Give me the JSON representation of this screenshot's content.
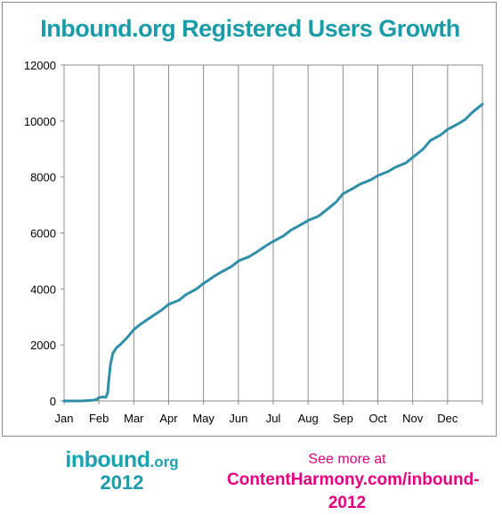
{
  "chart_data": {
    "type": "line",
    "title": "Inbound.org Registered Users Growth",
    "xlabel": "",
    "ylabel": "",
    "ylim": [
      0,
      12000
    ],
    "y_ticks": [
      "0",
      "2000",
      "4000",
      "6000",
      "8000",
      "10000",
      "12000"
    ],
    "x_tick_labels": [
      "Jan",
      "Feb",
      "Mar",
      "Apr",
      "May",
      "Jun",
      "Jul",
      "Aug",
      "Sep",
      "Oct",
      "Nov",
      "Dec"
    ],
    "xlim_months": [
      0,
      12
    ],
    "grid": "vertical",
    "legend": "none",
    "series": [
      {
        "color": "#2f8fa8",
        "x_months": [
          0,
          0.5,
          0.85,
          0.95,
          1.0,
          1.1,
          1.2,
          1.25,
          1.28,
          1.33,
          1.4,
          1.5,
          1.6,
          1.8,
          2.0,
          2.2,
          2.5,
          2.8,
          3.0,
          3.3,
          3.5,
          3.8,
          4.0,
          4.3,
          4.5,
          4.8,
          5.0,
          5.3,
          5.5,
          5.8,
          6.0,
          6.3,
          6.5,
          6.8,
          7.0,
          7.3,
          7.5,
          7.8,
          8.0,
          8.3,
          8.5,
          8.8,
          9.0,
          9.3,
          9.5,
          9.8,
          10.0,
          10.3,
          10.5,
          10.8,
          11.0,
          11.3,
          11.5,
          11.7,
          11.9,
          12.0
        ],
        "y_values": [
          0,
          0,
          30,
          60,
          120,
          140,
          130,
          300,
          700,
          1300,
          1700,
          1900,
          2000,
          2250,
          2550,
          2750,
          3000,
          3250,
          3450,
          3600,
          3800,
          4000,
          4200,
          4450,
          4600,
          4800,
          5000,
          5150,
          5300,
          5550,
          5700,
          5900,
          6100,
          6300,
          6450,
          6600,
          6800,
          7100,
          7400,
          7600,
          7750,
          7900,
          8050,
          8200,
          8350,
          8500,
          8700,
          9000,
          9300,
          9500,
          9700,
          9900,
          10050,
          10300,
          10500,
          10600
        ]
      }
    ]
  },
  "footer": {
    "logo_word": "inbound",
    "logo_suffix": ".org",
    "logo_year": "2012",
    "cta_line1": "See more at",
    "cta_line2": "ContentHarmony.com/inbound-2012",
    "brand_color": "#19a3b0",
    "cta_color": "#e6007e"
  }
}
